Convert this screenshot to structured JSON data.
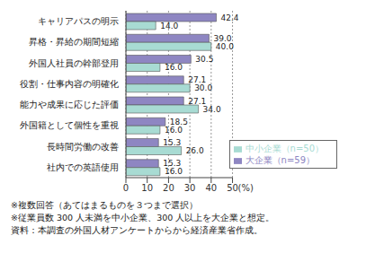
{
  "chart_data": {
    "type": "bar",
    "orientation": "horizontal",
    "categories": [
      "キャリアパスの明示",
      "昇格・昇給の期間短縮",
      "外国人社員の幹部登用",
      "役割・仕事内容の明確化",
      "能力や成果に応じた評価",
      "外国籍として個性を重視",
      "長時間労働の改善",
      "社内での英語使用"
    ],
    "series": [
      {
        "name": "大企業（n=59）",
        "color": "#8e86c2",
        "values": [
          42.4,
          39.0,
          30.5,
          27.1,
          27.1,
          18.5,
          15.3,
          15.3
        ],
        "value_labels": [
          "42.4",
          "39.0",
          "30.5",
          "27.1",
          "27.1",
          "18.5",
          "15.3",
          "15.3"
        ]
      },
      {
        "name": "中小企業（n=50）",
        "color": "#a8dbd3",
        "values": [
          14.0,
          40.0,
          16.0,
          30.0,
          34.0,
          16.0,
          26.0,
          16.0
        ],
        "value_labels": [
          "14.0",
          "40.0",
          "16.0",
          "30.0",
          "34.0",
          "16.0",
          "26.0",
          "16.0"
        ]
      }
    ],
    "x_label": "(%)",
    "xlim": [
      0,
      50
    ],
    "xticks": [
      0,
      10,
      20,
      30,
      40,
      50
    ],
    "grid": true,
    "legend": "lower right",
    "data_labels": true,
    "annotations": [
      "※複数回答（あてはまるものを３つまで選択）",
      "※従業員数 300 人未満を中小企業、300 人以上を大企業と想定。",
      "資料：本調査の外国人材アンケートからから経済産業省作成。"
    ]
  }
}
